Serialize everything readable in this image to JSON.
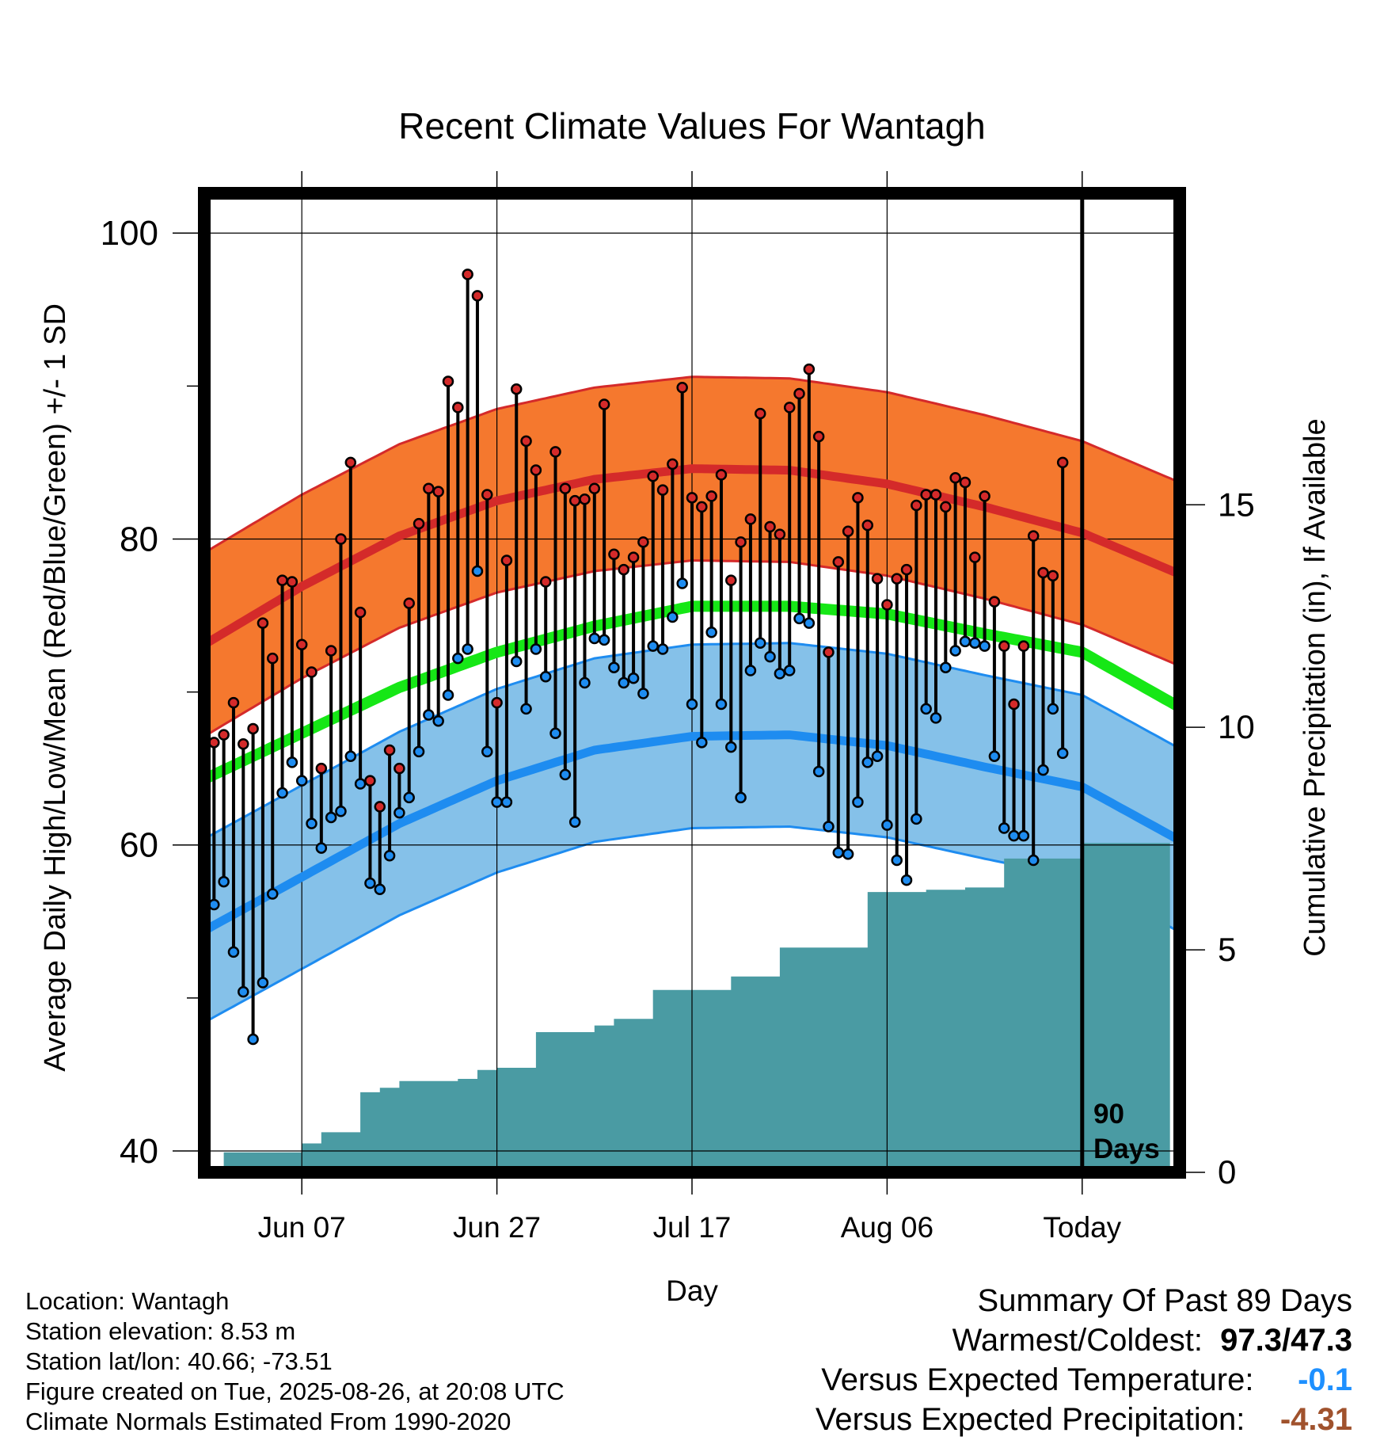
{
  "chart_data": {
    "type": "line",
    "title": "Recent Climate Values For Wantagh",
    "xlabel": "Day",
    "ylabel": "Average Daily High/Low/Mean (Red/Blue/Green) +/- 1 SD",
    "y2label": "Cumulative Precipitation (in), If Available",
    "ylim": [
      38.6,
      102.6
    ],
    "y2lim": [
      0,
      22
    ],
    "yticks": [
      40,
      60,
      80,
      100
    ],
    "y2ticks": [
      0,
      5,
      10,
      15
    ],
    "xlim": [
      -10,
      90
    ],
    "xticks": [
      {
        "day": 0,
        "label": "Jun 07"
      },
      {
        "day": 20,
        "label": "Jun 27"
      },
      {
        "day": 40,
        "label": "Jul 17"
      },
      {
        "day": 60,
        "label": "Aug 06"
      },
      {
        "day": 80,
        "label": "Today"
      }
    ],
    "grid": true,
    "today_marker": {
      "day": 80,
      "label_line1": "90",
      "label_line2": "Days"
    },
    "normals": {
      "days": [
        -10,
        0,
        10,
        20,
        30,
        40,
        50,
        60,
        70,
        80,
        90
      ],
      "high_mean": [
        73.1,
        76.9,
        80.2,
        82.5,
        83.9,
        84.6,
        84.5,
        83.6,
        82.1,
        80.4,
        77.7
      ],
      "high_sd": 6.0,
      "low_mean": [
        54.4,
        57.9,
        61.4,
        64.2,
        66.2,
        67.1,
        67.2,
        66.5,
        65.1,
        63.8,
        60.3
      ],
      "low_sd": 6.0,
      "avg_mean": [
        64.3,
        67.3,
        70.3,
        72.6,
        74.3,
        75.6,
        75.6,
        75.1,
        73.8,
        72.6,
        69.0
      ]
    },
    "daily": {
      "start_day": -10,
      "high": [
        66.0,
        66.7,
        67.2,
        69.3,
        66.6,
        67.6,
        74.5,
        72.2,
        77.3,
        77.2,
        73.1,
        71.3,
        65.0,
        72.7,
        80.0,
        85.0,
        75.2,
        64.2,
        62.5,
        66.2,
        65.0,
        75.8,
        81.0,
        83.3,
        83.1,
        90.3,
        88.6,
        97.3,
        95.9,
        82.9,
        69.3,
        78.6,
        89.8,
        86.4,
        84.5,
        77.2,
        85.7,
        83.3,
        82.5,
        82.6,
        83.3,
        88.8,
        79.0,
        78.0,
        78.8,
        79.8,
        84.1,
        83.2,
        84.9,
        89.9,
        82.7,
        82.1,
        82.8,
        84.2,
        77.3,
        79.8,
        81.3,
        88.2,
        80.8,
        80.3,
        88.6,
        89.5,
        91.1,
        86.7,
        72.6,
        78.5,
        80.5,
        82.7,
        80.9,
        77.4,
        75.7,
        77.4,
        78.0,
        82.2,
        82.9,
        82.9,
        82.1,
        84.0,
        83.7,
        78.8,
        82.8,
        75.9,
        73.0,
        69.2,
        73.0,
        80.2,
        77.8,
        77.6,
        85.0
      ],
      "low": [
        53.1,
        56.1,
        57.6,
        53.0,
        50.4,
        47.3,
        51.0,
        56.8,
        63.4,
        65.4,
        64.2,
        61.4,
        59.8,
        61.8,
        62.2,
        65.8,
        64.0,
        57.5,
        57.1,
        59.3,
        62.1,
        63.1,
        66.1,
        68.5,
        68.1,
        69.8,
        72.2,
        72.8,
        77.9,
        66.1,
        62.8,
        62.8,
        72.0,
        68.9,
        72.8,
        71.0,
        67.3,
        64.6,
        61.5,
        70.6,
        73.5,
        73.4,
        71.6,
        70.6,
        70.9,
        69.9,
        73.0,
        72.8,
        74.9,
        77.1,
        69.2,
        66.7,
        73.9,
        69.2,
        66.4,
        63.1,
        71.4,
        73.2,
        72.3,
        71.2,
        71.4,
        74.8,
        74.5,
        64.8,
        61.2,
        59.5,
        59.4,
        62.8,
        65.4,
        65.8,
        61.3,
        59.0,
        57.7,
        61.7,
        68.9,
        68.3,
        71.6,
        72.7,
        73.3,
        73.2,
        73.0,
        65.8,
        61.1,
        60.6,
        60.6,
        59.0,
        64.9,
        68.9,
        66.0
      ]
    },
    "precip_cumulative": {
      "days": [
        -9,
        -8,
        -1,
        0,
        2,
        4,
        6,
        8,
        10,
        13,
        16,
        18,
        20,
        22,
        24,
        28,
        30,
        32,
        34,
        36,
        38,
        40,
        44,
        47,
        49,
        52,
        58,
        64,
        68,
        72,
        76,
        80,
        89
      ],
      "values": [
        0,
        0.45,
        0.45,
        0.65,
        0.9,
        0.9,
        1.8,
        1.9,
        2.05,
        2.05,
        2.1,
        2.3,
        2.35,
        2.35,
        3.15,
        3.15,
        3.3,
        3.45,
        3.45,
        4.1,
        4.1,
        4.1,
        4.4,
        4.4,
        5.05,
        5.05,
        6.3,
        6.35,
        6.4,
        7.05,
        7.05,
        7.4,
        7.4
      ]
    }
  },
  "info": {
    "location": "Location: Wantagh",
    "elevation": "Station elevation: 8.53 m",
    "latlon": "Station lat/lon: 40.66; -73.51",
    "created": "Figure created on Tue, 2025-08-26, at 20:08 UTC",
    "normals": "Climate Normals Estimated From 1990-2020"
  },
  "summary": {
    "title": "Summary Of Past 89 Days",
    "warm_cold_label": "Warmest/Coldest:",
    "warm_cold_value": "97.3/47.3",
    "temp_label": "Versus Expected Temperature:",
    "temp_value": "-0.1",
    "precip_label": "Versus Expected Precipitation:",
    "precip_value": "-4.31"
  },
  "colors": {
    "high_band": "#f5782e",
    "high_line": "#d42a2a",
    "low_band": "#85c1e9",
    "low_line": "#1e8cf0",
    "mean_line": "#16e716",
    "precip_fill": "#4a9ba3",
    "high_dot": "#d42a2a",
    "low_dot": "#1e8cf0",
    "temp_value": "#1e90ff",
    "precip_value": "#a0522d"
  }
}
